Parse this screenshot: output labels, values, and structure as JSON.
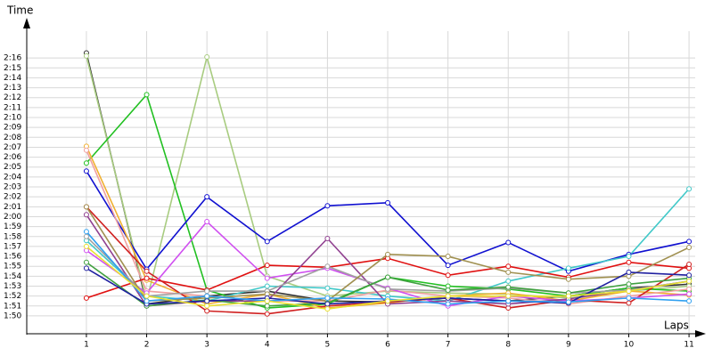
{
  "chart_data": {
    "type": "line",
    "y_label": "Time",
    "x_label": "Laps",
    "x": [
      1,
      2,
      3,
      4,
      5,
      6,
      7,
      8,
      9,
      10,
      11
    ],
    "xlim": [
      0.01,
      11.25
    ],
    "xticks": [
      1,
      2,
      3,
      4,
      5,
      6,
      7,
      8,
      9,
      10,
      11
    ],
    "ylim": [
      108.2,
      139.6
    ],
    "yticks": [
      {
        "value": 110,
        "label": "1:50"
      },
      {
        "value": 111,
        "label": "1:51"
      },
      {
        "value": 112,
        "label": "1:52"
      },
      {
        "value": 113,
        "label": "1:53"
      },
      {
        "value": 114,
        "label": "1:54"
      },
      {
        "value": 115,
        "label": "1:55"
      },
      {
        "value": 116,
        "label": "1:56"
      },
      {
        "value": 117,
        "label": "1:57"
      },
      {
        "value": 118,
        "label": "1:58"
      },
      {
        "value": 119,
        "label": "1:59"
      },
      {
        "value": 120,
        "label": "2:00"
      },
      {
        "value": 121,
        "label": "2:01"
      },
      {
        "value": 122,
        "label": "2:02"
      },
      {
        "value": 123,
        "label": "2:03"
      },
      {
        "value": 124,
        "label": "2:04"
      },
      {
        "value": 125,
        "label": "2:05"
      },
      {
        "value": 126,
        "label": "2:06"
      },
      {
        "value": 127,
        "label": "2:07"
      },
      {
        "value": 128,
        "label": "2:08"
      },
      {
        "value": 129,
        "label": "2:09"
      },
      {
        "value": 130,
        "label": "2:10"
      },
      {
        "value": 131,
        "label": "2:11"
      },
      {
        "value": 132,
        "label": "2:12"
      },
      {
        "value": 133,
        "label": "2:13"
      },
      {
        "value": 134,
        "label": "2:14"
      },
      {
        "value": 135,
        "label": "2:15"
      },
      {
        "value": 136,
        "label": "2:16"
      }
    ],
    "grid": true,
    "series": [
      {
        "color": "#333333",
        "values": [
          136.5,
          111.2,
          112,
          112.5,
          111.5,
          111.4,
          111.8,
          111.5,
          112,
          112.8,
          113.2
        ]
      },
      {
        "color": "#a8cc80",
        "values": [
          136.2,
          111.5,
          136.1,
          114,
          112,
          112.5,
          112.3,
          112.2,
          111.8,
          112.5,
          113
        ]
      },
      {
        "color": "#22c022",
        "values": [
          125.4,
          132.3,
          112.6,
          110.8,
          111.2,
          113.9,
          113,
          112.7,
          112,
          112.8,
          112.5
        ]
      },
      {
        "color": "#1010d0",
        "values": [
          124.6,
          114.7,
          122,
          117.5,
          121.1,
          121.4,
          115.1,
          117.4,
          114.5,
          116.2,
          117.5
        ]
      },
      {
        "color": "#40c8c8",
        "values": [
          117.6,
          112,
          111.5,
          113,
          112.8,
          112,
          111.5,
          113.5,
          114.8,
          116,
          122.8
        ]
      },
      {
        "color": "#f0b030",
        "values": [
          127.1,
          113.6,
          111.2,
          112.2,
          110.8,
          111.3,
          112,
          112.3,
          111.5,
          112.5,
          112.1
        ]
      },
      {
        "color": "#f0a0a0",
        "values": [
          126.7,
          112.5,
          112,
          111.5,
          111.5,
          112.6,
          112,
          111.8,
          111.2,
          112,
          112.7
        ]
      },
      {
        "color": "#e01010",
        "values": [
          111.8,
          113.8,
          112.6,
          115.1,
          114.9,
          115.8,
          114.1,
          115,
          113.9,
          115.4,
          114.8
        ]
      },
      {
        "color": "#d02020",
        "values": [
          121,
          114.5,
          110.5,
          110.2,
          111,
          111.4,
          111.8,
          110.8,
          111.6,
          111.3,
          115.2
        ]
      },
      {
        "color": "#d050f0",
        "values": [
          116.6,
          112.3,
          119.5,
          113.8,
          114.8,
          112.8,
          111,
          112,
          111.5,
          111.8,
          112.2
        ]
      },
      {
        "color": "#904090",
        "values": [
          120.2,
          111,
          111.5,
          111.5,
          117.8,
          111.2,
          111.5,
          111.2,
          111.7,
          112.6,
          113.5
        ]
      },
      {
        "color": "#a0a0a0",
        "values": [
          118,
          112,
          112.5,
          112.5,
          115,
          112.7,
          112.5,
          112.8,
          112.3,
          112.6,
          113.5
        ]
      },
      {
        "color": "#a09050",
        "values": [
          121,
          111.5,
          111.8,
          112.2,
          111.5,
          116.2,
          116,
          114.4,
          113.7,
          114,
          116.9
        ]
      },
      {
        "color": "#40a040",
        "values": [
          115.4,
          111,
          111.6,
          111,
          111.3,
          113.9,
          112.6,
          112.9,
          112.3,
          113.2,
          113.8
        ]
      },
      {
        "color": "#2020a0",
        "values": [
          114.8,
          111.2,
          111.5,
          111.8,
          111.2,
          111.5,
          111.8,
          111.5,
          111.3,
          114.4,
          114.1
        ]
      },
      {
        "color": "#30a0f0",
        "values": [
          118.5,
          111.5,
          112,
          111.5,
          111.8,
          111.7,
          111.2,
          111.5,
          111.4,
          111.8,
          111.5
        ]
      },
      {
        "color": "#e8e030",
        "values": [
          117,
          112,
          111,
          111.5,
          110.7,
          111.5,
          112,
          112,
          112,
          112.5,
          113.5
        ]
      }
    ]
  }
}
